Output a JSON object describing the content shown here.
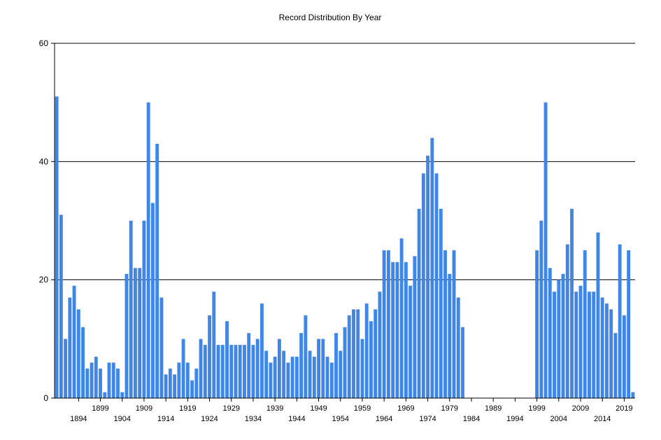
{
  "chart_data": {
    "type": "bar",
    "title": "Record Distribution By Year",
    "xlabel": "",
    "ylabel": "",
    "ylim": [
      0,
      60
    ],
    "yticks": [
      0,
      20,
      40,
      60
    ],
    "grid": "horizontal",
    "legend": "none",
    "bar_color": "#3f86e9",
    "x_start": 1889,
    "x_end": 2019,
    "xtick_labels_row1": [
      "1899",
      "1909",
      "1919",
      "1929",
      "1939",
      "1949",
      "1959",
      "1969",
      "1979",
      "1989",
      "1999",
      "2009",
      "2019"
    ],
    "xtick_labels_row2": [
      "1894",
      "1904",
      "1914",
      "1924",
      "1934",
      "1944",
      "1954",
      "1964",
      "1974",
      "1984",
      "1994",
      "2004",
      "2014"
    ],
    "values": [
      51,
      31,
      10,
      17,
      19,
      15,
      12,
      5,
      6,
      7,
      5,
      1,
      6,
      6,
      5,
      1,
      21,
      30,
      22,
      22,
      30,
      50,
      33,
      43,
      17,
      4,
      5,
      4,
      6,
      10,
      6,
      3,
      5,
      10,
      9,
      14,
      18,
      9,
      9,
      13,
      9,
      9,
      9,
      9,
      11,
      9,
      10,
      16,
      8,
      6,
      7,
      10,
      8,
      6,
      7,
      7,
      11,
      14,
      8,
      7,
      10,
      10,
      7,
      6,
      11,
      8,
      12,
      14,
      15,
      15,
      10,
      16,
      13,
      15,
      18,
      25,
      25,
      23,
      23,
      27,
      23,
      19,
      24,
      32,
      38,
      41,
      44,
      38,
      32,
      25,
      21,
      25,
      17,
      12,
      0,
      0,
      0,
      0,
      0,
      0,
      0,
      0,
      0,
      0,
      0,
      0,
      0,
      0,
      0,
      0,
      25,
      30,
      50,
      22,
      18,
      20,
      21,
      26,
      32,
      18,
      19,
      25,
      18,
      18,
      28,
      17,
      16,
      15,
      11,
      26,
      14,
      25,
      1
    ]
  }
}
